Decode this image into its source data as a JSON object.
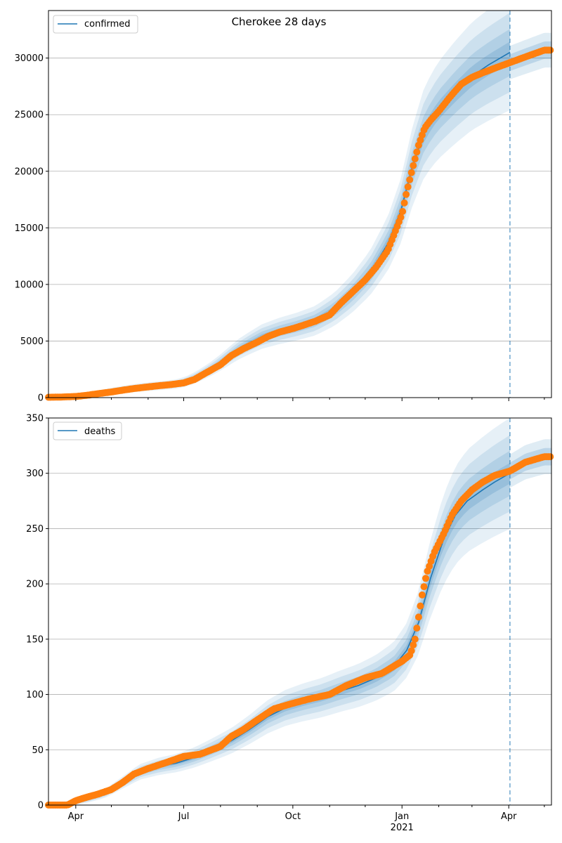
{
  "figure": {
    "title": "Cherokee 28 days"
  },
  "chart_data": [
    {
      "type": "line",
      "title": "Cherokee 28 days",
      "legend": {
        "label": "confirmed",
        "placement": "top-left"
      },
      "ylim": [
        0,
        34200
      ],
      "yticks": [
        0,
        5000,
        10000,
        15000,
        20000,
        25000,
        30000
      ],
      "ytick_labels": [
        "0",
        "5000",
        "10000",
        "15000",
        "20000",
        "25000",
        "30000"
      ],
      "grid": "horizontal",
      "forecast_start": "2021-04-02",
      "series": [
        {
          "name": "confirmed",
          "kind": "model",
          "x": [
            "2020-03-09",
            "2020-03-25",
            "2020-04-10",
            "2020-04-25",
            "2020-05-10",
            "2020-05-25",
            "2020-06-10",
            "2020-06-25",
            "2020-07-05",
            "2020-07-15",
            "2020-07-25",
            "2020-08-05",
            "2020-08-15",
            "2020-08-25",
            "2020-09-05",
            "2020-09-20",
            "2020-10-05",
            "2020-10-20",
            "2020-11-05",
            "2020-11-20",
            "2020-12-05",
            "2020-12-20",
            "2020-12-31",
            "2021-01-10",
            "2021-01-20",
            "2021-01-31",
            "2021-02-15",
            "2021-03-01",
            "2021-03-15",
            "2021-04-02"
          ],
          "y": [
            0,
            20,
            200,
            450,
            700,
            900,
            1050,
            1200,
            1500,
            2000,
            2600,
            3400,
            4200,
            4800,
            5400,
            5900,
            6300,
            6800,
            7800,
            9200,
            11000,
            13600,
            16500,
            20500,
            23500,
            25300,
            27000,
            28400,
            29400,
            30500
          ]
        },
        {
          "name": "confirmed observed",
          "kind": "observed",
          "x": [
            "2020-03-09",
            "2020-03-20",
            "2020-04-01",
            "2020-04-10",
            "2020-04-20",
            "2020-05-01",
            "2020-05-10",
            "2020-05-20",
            "2020-06-01",
            "2020-06-10",
            "2020-06-20",
            "2020-07-01",
            "2020-07-10",
            "2020-07-20",
            "2020-08-01",
            "2020-08-10",
            "2020-08-20",
            "2020-09-01",
            "2020-09-10",
            "2020-09-20",
            "2020-10-01",
            "2020-10-10",
            "2020-10-20",
            "2020-11-01",
            "2020-11-10",
            "2020-11-20",
            "2020-12-01",
            "2020-12-10",
            "2020-12-20",
            "2021-01-01",
            "2021-01-05",
            "2021-01-10",
            "2021-01-15",
            "2021-01-20",
            "2021-01-25",
            "2021-02-01",
            "2021-02-10",
            "2021-02-20",
            "2021-03-01",
            "2021-03-10",
            "2021-03-20",
            "2021-04-02",
            "2021-04-15",
            "2021-05-01"
          ],
          "y": [
            30,
            50,
            100,
            200,
            350,
            500,
            650,
            800,
            950,
            1050,
            1150,
            1300,
            1600,
            2200,
            2900,
            3700,
            4300,
            4900,
            5400,
            5800,
            6100,
            6400,
            6750,
            7300,
            8300,
            9300,
            10400,
            11500,
            13000,
            16200,
            18200,
            20300,
            22300,
            23800,
            24500,
            25300,
            26500,
            27700,
            28300,
            28700,
            29100,
            29600,
            30100,
            30700
          ]
        }
      ],
      "bands": "quantile intervals around model"
    },
    {
      "type": "line",
      "legend": {
        "label": "deaths",
        "placement": "top-left"
      },
      "ylim": [
        0,
        350
      ],
      "yticks": [
        0,
        50,
        100,
        150,
        200,
        250,
        300,
        350
      ],
      "ytick_labels": [
        "0",
        "50",
        "100",
        "150",
        "200",
        "250",
        "300",
        "350"
      ],
      "xtick_labels": [
        "Apr",
        "Jul",
        "Oct",
        "Jan",
        "Apr"
      ],
      "xtick_sublabel": "2021",
      "grid": "horizontal",
      "forecast_start": "2021-04-02",
      "series": [
        {
          "name": "deaths",
          "kind": "model",
          "x": [
            "2020-03-09",
            "2020-03-25",
            "2020-04-10",
            "2020-04-25",
            "2020-05-10",
            "2020-05-25",
            "2020-06-10",
            "2020-06-25",
            "2020-07-10",
            "2020-07-25",
            "2020-08-10",
            "2020-08-25",
            "2020-09-10",
            "2020-09-25",
            "2020-10-10",
            "2020-10-25",
            "2020-11-10",
            "2020-11-25",
            "2020-12-10",
            "2020-12-25",
            "2021-01-05",
            "2021-01-15",
            "2021-01-25",
            "2021-02-05",
            "2021-02-15",
            "2021-02-25",
            "2021-03-10",
            "2021-03-20",
            "2021-04-02"
          ],
          "y": [
            0,
            1,
            5,
            10,
            20,
            30,
            35,
            38,
            43,
            50,
            58,
            68,
            80,
            88,
            93,
            97,
            103,
            108,
            115,
            125,
            140,
            165,
            205,
            240,
            262,
            275,
            285,
            292,
            300
          ]
        },
        {
          "name": "deaths observed",
          "kind": "observed",
          "x": [
            "2020-03-09",
            "2020-03-25",
            "2020-04-01",
            "2020-04-10",
            "2020-04-20",
            "2020-05-01",
            "2020-05-10",
            "2020-05-20",
            "2020-06-01",
            "2020-06-15",
            "2020-07-01",
            "2020-07-15",
            "2020-08-01",
            "2020-08-10",
            "2020-08-20",
            "2020-09-01",
            "2020-09-15",
            "2020-10-01",
            "2020-10-15",
            "2020-11-01",
            "2020-11-15",
            "2020-12-01",
            "2020-12-15",
            "2021-01-01",
            "2021-01-08",
            "2021-01-12",
            "2021-01-15",
            "2021-01-18",
            "2021-01-22",
            "2021-01-28",
            "2021-02-05",
            "2021-02-12",
            "2021-02-20",
            "2021-03-01",
            "2021-03-10",
            "2021-03-20",
            "2021-04-02",
            "2021-04-15",
            "2021-05-01"
          ],
          "y": [
            0,
            0,
            4,
            7,
            10,
            14,
            20,
            28,
            33,
            38,
            44,
            46,
            53,
            62,
            68,
            77,
            87,
            92,
            96,
            100,
            108,
            115,
            119,
            130,
            136,
            150,
            170,
            190,
            210,
            228,
            245,
            262,
            275,
            285,
            292,
            298,
            302,
            310,
            315
          ]
        }
      ],
      "bands": "quantile intervals around model"
    }
  ],
  "colors": {
    "model_line": "#1f77b4",
    "observed": "#ff7f0e",
    "band": "#1f77b4",
    "grid": "#b0b0b0",
    "vline": "#1f77b4"
  }
}
